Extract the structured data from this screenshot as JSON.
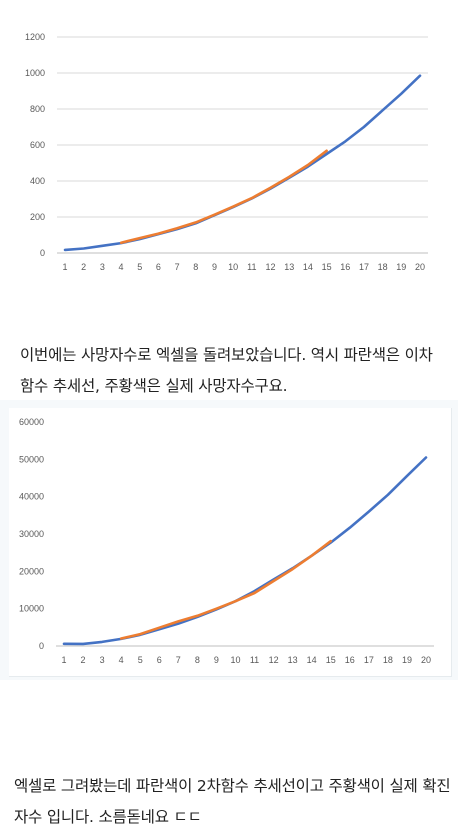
{
  "captions": [
    "이번에는 사망자수로 엑셀을 돌려보았습니다. 역시 파란색은 이차함수 추세선, 주황색은 실제 사망자수구요.",
    "엑셀로 그려봤는데 파란색이 2차함수 추세선이고 주황색이 실제 확진자수 입니다. 소름돋네요 ㄷㄷ"
  ],
  "colors": {
    "trend": "#4472c4",
    "actual": "#ed7d31",
    "grid": "#d9d9d9",
    "axis": "#bfbfbf"
  },
  "chart_data": [
    {
      "type": "line",
      "title": "",
      "xlabel": "",
      "ylabel": "",
      "x": [
        1,
        2,
        3,
        4,
        5,
        6,
        7,
        8,
        9,
        10,
        11,
        12,
        13,
        14,
        15,
        16,
        17,
        18,
        19,
        20
      ],
      "ylim": [
        0,
        1200
      ],
      "yticks": [
        0,
        200,
        400,
        600,
        800,
        1000,
        1200
      ],
      "grid": true,
      "series": [
        {
          "key": "trend",
          "x": [
            1,
            2,
            3,
            4,
            5,
            6,
            7,
            8,
            9,
            10,
            11,
            12,
            13,
            14,
            15,
            16,
            17,
            18,
            19,
            20
          ],
          "values": [
            17,
            25,
            40,
            55,
            77,
            105,
            133,
            165,
            210,
            255,
            303,
            358,
            418,
            480,
            550,
            620,
            700,
            793,
            885,
            985
          ]
        },
        {
          "key": "actual",
          "x": [
            4,
            5,
            6,
            7,
            8,
            9,
            10,
            11,
            12,
            13,
            14,
            15
          ],
          "values": [
            57,
            83,
            108,
            137,
            170,
            213,
            258,
            305,
            362,
            423,
            489,
            568
          ]
        }
      ]
    },
    {
      "type": "line",
      "title": "",
      "xlabel": "",
      "ylabel": "",
      "x": [
        1,
        2,
        3,
        4,
        5,
        6,
        7,
        8,
        9,
        10,
        11,
        12,
        13,
        14,
        15,
        16,
        17,
        18,
        19,
        20
      ],
      "ylim": [
        0,
        60000
      ],
      "yticks": [
        0,
        10000,
        20000,
        30000,
        40000,
        50000,
        60000
      ],
      "grid": false,
      "series": [
        {
          "key": "trend",
          "x": [
            1,
            2,
            3,
            4,
            5,
            6,
            7,
            8,
            9,
            10,
            11,
            12,
            13,
            14,
            15,
            16,
            17,
            18,
            19,
            20
          ],
          "values": [
            600,
            550,
            1100,
            1900,
            3000,
            4500,
            6000,
            7800,
            9800,
            12000,
            14700,
            17800,
            20800,
            24200,
            27700,
            31700,
            36000,
            40500,
            45500,
            50500
          ]
        },
        {
          "key": "actual",
          "x": [
            4,
            5,
            6,
            7,
            8,
            9,
            10,
            11,
            12,
            13,
            14,
            15
          ],
          "values": [
            2000,
            3200,
            4900,
            6600,
            8100,
            10000,
            12000,
            14200,
            17400,
            20600,
            24200,
            28100
          ]
        }
      ]
    }
  ]
}
